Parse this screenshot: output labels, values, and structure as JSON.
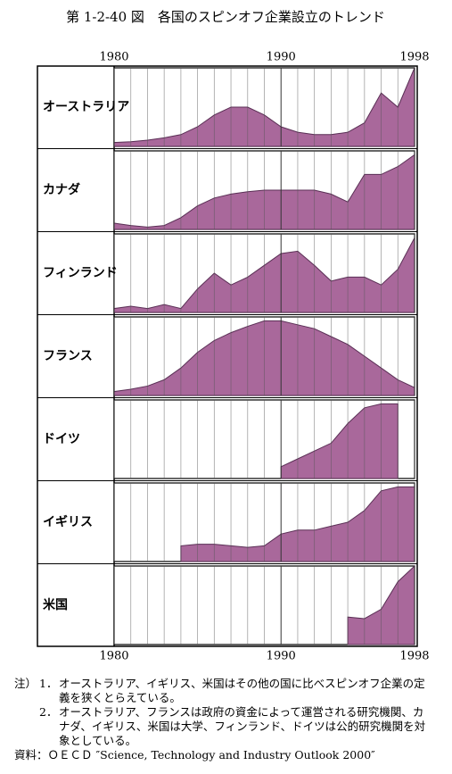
{
  "chart_data": {
    "type": "area",
    "title": "第 1-2-40 図　各国のスピンオフ企業設立のトレンド",
    "x": [
      1980,
      1981,
      1982,
      1983,
      1984,
      1985,
      1986,
      1987,
      1988,
      1989,
      1990,
      1991,
      1992,
      1993,
      1994,
      1995,
      1996,
      1997,
      1998
    ],
    "xlim": [
      1980,
      1998
    ],
    "xticks": [
      1980,
      1990,
      1998
    ],
    "minor_xticks": [
      1981,
      1982,
      1983,
      1984,
      1985,
      1986,
      1987,
      1988,
      1989,
      1991,
      1992,
      1993,
      1994,
      1995,
      1996,
      1997
    ],
    "ylim": [
      0,
      100
    ],
    "color": "#a9689b",
    "grid": true,
    "series": [
      {
        "name": "オーストラリア",
        "values": [
          5,
          6,
          8,
          11,
          15,
          25,
          40,
          50,
          50,
          40,
          25,
          18,
          15,
          15,
          18,
          30,
          68,
          50,
          100
        ]
      },
      {
        "name": "カナダ",
        "values": [
          8,
          5,
          3,
          5,
          15,
          30,
          40,
          45,
          48,
          50,
          50,
          50,
          50,
          45,
          35,
          70,
          70,
          80,
          95
        ]
      },
      {
        "name": "フィンランド",
        "values": [
          5,
          8,
          5,
          10,
          5,
          30,
          50,
          35,
          45,
          60,
          75,
          78,
          60,
          40,
          45,
          45,
          35,
          55,
          95
        ]
      },
      {
        "name": "フランス",
        "values": [
          5,
          8,
          12,
          20,
          35,
          55,
          70,
          80,
          88,
          95,
          95,
          90,
          85,
          75,
          65,
          50,
          35,
          20,
          10
        ]
      },
      {
        "name": "ドイツ",
        "values": [
          null,
          null,
          null,
          null,
          null,
          null,
          null,
          null,
          null,
          null,
          15,
          25,
          35,
          45,
          70,
          90,
          95,
          95,
          null
        ]
      },
      {
        "name": "イギリス",
        "values": [
          null,
          null,
          null,
          null,
          20,
          22,
          22,
          20,
          18,
          20,
          35,
          40,
          40,
          45,
          50,
          65,
          90,
          95,
          95
        ]
      },
      {
        "name": "米国",
        "values": [
          null,
          null,
          null,
          null,
          null,
          null,
          null,
          null,
          null,
          null,
          null,
          null,
          null,
          null,
          35,
          33,
          45,
          80,
          100
        ]
      }
    ]
  },
  "notes": {
    "label": "注）",
    "items": [
      {
        "number": "1．",
        "text": "オーストラリア、イギリス、米国はその他の国に比べスピンオフ企業の定義を狭くとらえている。"
      },
      {
        "number": "2．",
        "text": "オーストラリア、フランスは政府の資金によって運営される研究機関、カナダ、イギリス、米国は大学、フィンランド、ドイツは公的研究機関を対象としている。"
      }
    ]
  },
  "source": "資料：ＯＥＣＤ ″Science, Technology and Industry Outlook 2000″"
}
